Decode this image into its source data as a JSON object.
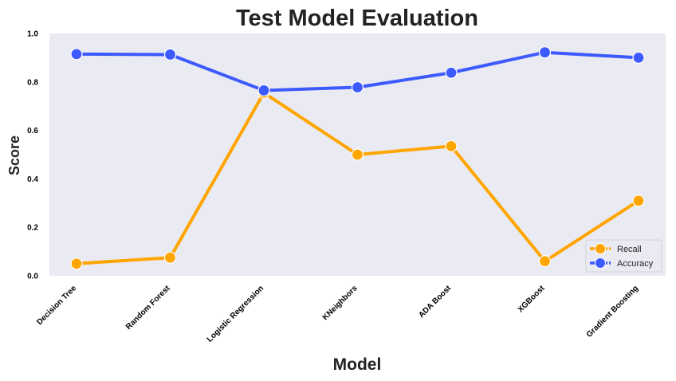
{
  "chart_data": {
    "type": "line",
    "title": "Test Model Evaluation",
    "xlabel": "Model",
    "ylabel": "Score",
    "categories": [
      "Decision Tree",
      "Random Forest",
      "Logistic Regression",
      "KNeighbors",
      "ADA Boost",
      "XGBoost",
      "Gradient Boosting"
    ],
    "series": [
      {
        "name": "Recall",
        "color": "#FFA500",
        "values": [
          0.05,
          0.075,
          0.755,
          0.5,
          0.535,
          0.06,
          0.31
        ]
      },
      {
        "name": "Accuracy",
        "color": "#3D5AFE",
        "values": [
          0.915,
          0.913,
          0.765,
          0.778,
          0.838,
          0.922,
          0.9
        ]
      }
    ],
    "ylim": [
      0.0,
      1.0
    ],
    "yticks": [
      "0.0",
      "0.2",
      "0.4",
      "0.6",
      "0.8",
      "1.0"
    ],
    "grid": false,
    "background": "#EAEAF2",
    "legend": "bottom-right"
  }
}
